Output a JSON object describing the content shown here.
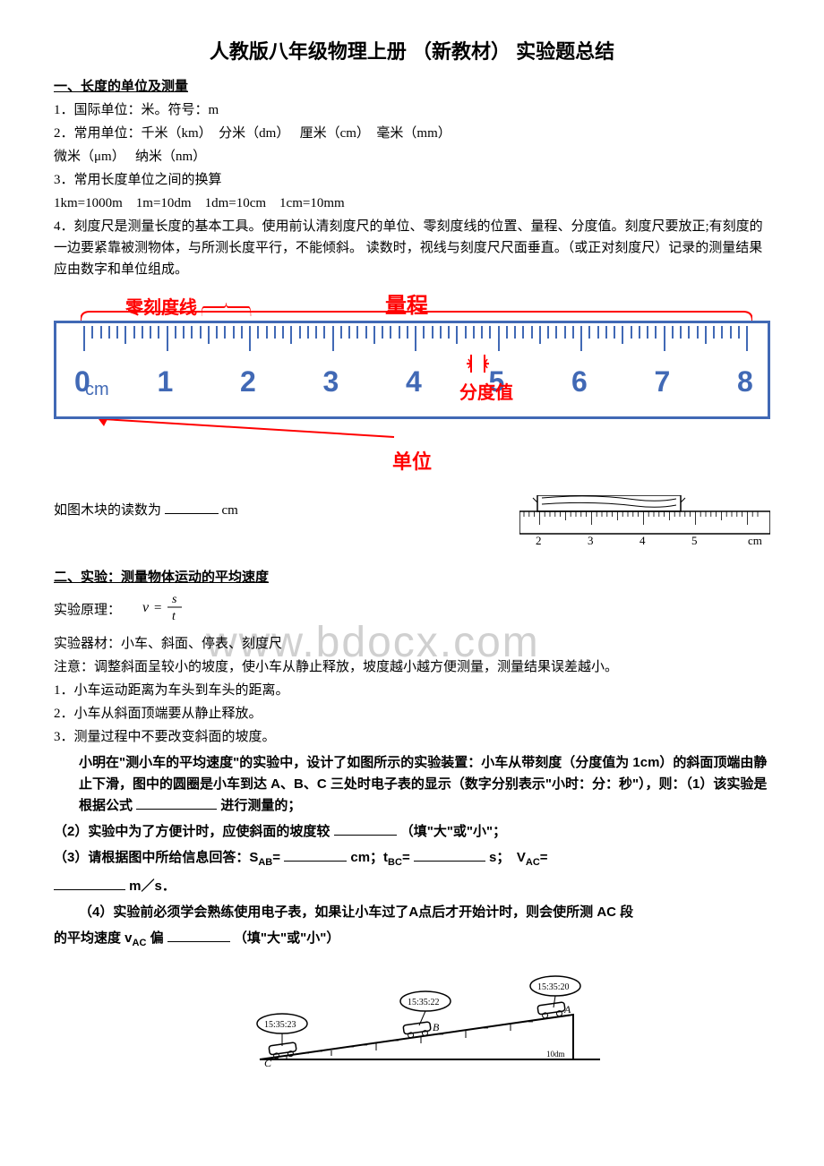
{
  "title": "人教版八年级物理上册 （新教材） 实验题总结",
  "section1": {
    "header": "一、长度的单位及测量",
    "line1": "1．国际单位：米。符号：m",
    "line2": "2．常用单位：千米（km）　分米（dm）　 厘米（cm）　毫米（mm）",
    "line3": "微米（μm）　 纳米（nm）",
    "line4": "3．常用长度单位之间的换算",
    "line5": "1km=1000m　1m=10dm　1dm=10cm　1cm=10mm",
    "line6": "4．刻度尺是测量长度的基本工具。使用前认清刻度尺的单位、零刻度线的位置、量程、分度值。刻度尺要放正;有刻度的一边要紧靠被测物体，与所测长度平行，不能倾斜。 读数时，视线与刻度尺尺面垂直。（或正对刻度尺）记录的测量结果应由数字和单位组成。"
  },
  "ruler": {
    "anno_zero": "零刻度线",
    "anno_range": "量程",
    "anno_division": "分度值",
    "anno_unit": "单位",
    "numbers": [
      "0",
      "1",
      "2",
      "3",
      "4",
      "5",
      "6",
      "7",
      "8"
    ],
    "unit_text": "cm"
  },
  "woodblock": {
    "text": "如图木块的读数为 ",
    "unit": "cm",
    "small_ruler_labels": [
      "2",
      "3",
      "4",
      "5"
    ],
    "small_ruler_unit": "cm"
  },
  "section2": {
    "header": "二、实验：测量物体运动的平均速度",
    "principle_label": "实验原理：",
    "formula": "v = s / t",
    "equipment": "实验器材：小车、斜面、停表、刻度尺",
    "notice": "注意：调整斜面呈较小的坡度，使小车从静止释放，坡度越小越方便测量，测量结果误差越小。",
    "note1": "1．小车运动距离为车头到车头的距离。",
    "note2": "2．小车从斜面顶端要从静止释放。",
    "note3": "3．测量过程中不要改变斜面的坡度。"
  },
  "experiment": {
    "intro1": "小明在\"测小车的平均速度\"的实验中，设计了如图所示的实验装置：小车从带刻度（分度值为 1cm）的斜面顶端由静止下滑，图中的圆圈是小车到达 A、B、C 三处时电子表的显示（数字分别表示\"小时：分：秒\"），则：（1）该实验是根据公式",
    "intro1_end": "进行测量的；",
    "q2": "（2）实验中为了方便计时，应使斜面的坡度较",
    "q2_hint": "（填\"大\"或\"小\"；",
    "q3_a": "（3）请根据图中所给信息回答：S",
    "q3_ab": "=",
    "q3_cm": "cm；t",
    "q3_bc": "=",
    "q3_s": "s；　V",
    "q3_ac": "=",
    "q3_end": "m／s．",
    "q4": "（4）实验前必须学会熟练使用电子表，如果让小车过了A点后才开始计时，则会使所测 AC 段",
    "q4_end": "的平均速度 v",
    "q4_ac": " 偏",
    "q4_hint": "（填\"大\"或\"小\"）"
  },
  "diagram": {
    "time_a": "15:35:20",
    "time_b": "15:35:22",
    "time_c": "15:35:23",
    "label_a": "A",
    "label_b": "B",
    "label_c": "C",
    "scale_end": "10dm"
  },
  "watermark": "www.bdocx.com"
}
